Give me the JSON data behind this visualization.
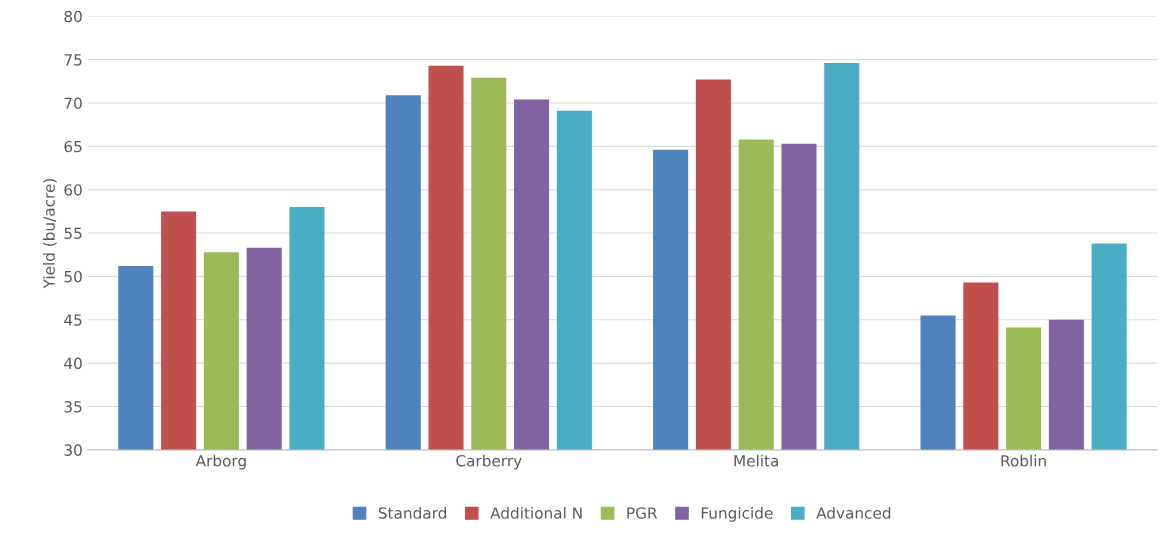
{
  "chart_data": {
    "type": "bar",
    "ylabel": "Yield (bu/acre)",
    "categories": [
      "Arborg",
      "Carberry",
      "Melita",
      "Roblin"
    ],
    "series": [
      {
        "name": "Standard",
        "color": "#4f81bd",
        "values": [
          51.2,
          70.9,
          64.6,
          45.5
        ]
      },
      {
        "name": "Additional N",
        "color": "#c0504d",
        "values": [
          57.5,
          74.3,
          72.7,
          49.3
        ]
      },
      {
        "name": "PGR",
        "color": "#9bbb59",
        "values": [
          52.8,
          72.9,
          65.8,
          44.1
        ]
      },
      {
        "name": "Fungicide",
        "color": "#8064a2",
        "values": [
          53.3,
          70.4,
          65.3,
          45.0
        ]
      },
      {
        "name": "Advanced",
        "color": "#4bacc6",
        "values": [
          58.0,
          69.1,
          74.6,
          53.8
        ]
      }
    ],
    "ylim": [
      30,
      80
    ],
    "yticks": [
      30,
      35,
      40,
      45,
      50,
      55,
      60,
      65,
      70,
      75,
      80
    ],
    "grid": "y",
    "legend": "bottom"
  }
}
